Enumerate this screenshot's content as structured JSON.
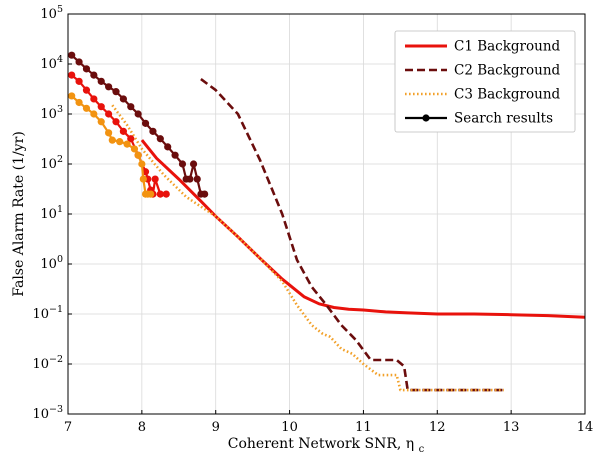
{
  "chart_data": {
    "type": "line",
    "title": "",
    "xlabel": "Coherent Network SNR, ηc",
    "ylabel": "False Alarm Rate (1/yr)",
    "xlim": [
      7,
      14
    ],
    "ylim": [
      0.001,
      100000
    ],
    "yscale": "log",
    "grid": true,
    "legend_position": "top-right",
    "x_ticks": [
      "7",
      "8",
      "9",
      "10",
      "11",
      "12",
      "13",
      "14"
    ],
    "y_ticks": [
      {
        "base": "10",
        "exp": "−3"
      },
      {
        "base": "10",
        "exp": "−2"
      },
      {
        "base": "10",
        "exp": "−1"
      },
      {
        "base": "10",
        "exp": "0"
      },
      {
        "base": "10",
        "exp": "1"
      },
      {
        "base": "10",
        "exp": "2"
      },
      {
        "base": "10",
        "exp": "3"
      },
      {
        "base": "10",
        "exp": "4"
      },
      {
        "base": "10",
        "exp": "5"
      }
    ],
    "legend": [
      {
        "label": "C1 Background",
        "color": "#e8120c",
        "style": "solid"
      },
      {
        "label": "C2 Background",
        "color": "#6b0d0d",
        "style": "dashed"
      },
      {
        "label": "C3 Background",
        "color": "#f2a12a",
        "style": "dotted"
      },
      {
        "label": "Search results",
        "color": "#000000",
        "style": "marker-line"
      }
    ],
    "series": [
      {
        "name": "C1 Background",
        "color": "#e8120c",
        "style": "solid",
        "x": [
          8.0,
          8.2,
          8.5,
          8.8,
          9.0,
          9.3,
          9.6,
          9.9,
          10.2,
          10.4,
          10.6,
          10.8,
          11.0,
          11.3,
          11.6,
          12.0,
          12.5,
          13.0,
          13.5,
          14.0
        ],
        "y": [
          300,
          130,
          50,
          18,
          9,
          3.5,
          1.3,
          0.5,
          0.22,
          0.16,
          0.135,
          0.125,
          0.12,
          0.11,
          0.105,
          0.1,
          0.1,
          0.097,
          0.093,
          0.086
        ]
      },
      {
        "name": "C2 Background",
        "color": "#6b0d0d",
        "style": "dashed",
        "x": [
          8.8,
          9.0,
          9.3,
          9.6,
          9.9,
          10.1,
          10.3,
          10.5,
          10.7,
          10.9,
          11.1,
          11.2,
          11.3,
          11.45,
          11.55,
          11.6,
          12.0,
          12.5,
          12.9
        ],
        "y": [
          5000,
          3000,
          1000,
          120,
          10,
          1.2,
          0.35,
          0.15,
          0.06,
          0.03,
          0.012,
          0.012,
          0.012,
          0.012,
          0.009,
          0.003,
          0.003,
          0.003,
          0.003
        ]
      },
      {
        "name": "C3 Background",
        "color": "#f2a12a",
        "style": "dotted",
        "x": [
          7.6,
          7.8,
          8.0,
          8.3,
          8.6,
          9.0,
          9.3,
          9.6,
          9.9,
          10.1,
          10.3,
          10.45,
          10.55,
          10.7,
          10.85,
          11.0,
          11.2,
          11.35,
          11.45,
          11.5,
          11.7,
          12.0,
          12.5,
          12.9
        ],
        "y": [
          1500,
          600,
          200,
          60,
          22,
          9,
          3.5,
          1.3,
          0.45,
          0.15,
          0.06,
          0.04,
          0.035,
          0.02,
          0.016,
          0.01,
          0.006,
          0.006,
          0.006,
          0.003,
          0.003,
          0.003,
          0.003,
          0.003
        ]
      },
      {
        "name": "Search results C1",
        "color": "#e8120c",
        "style": "marker-line",
        "x": [
          7.05,
          7.15,
          7.25,
          7.35,
          7.45,
          7.55,
          7.65,
          7.75,
          7.85,
          7.95,
          8.05,
          8.08,
          8.12,
          8.15,
          8.18,
          8.25,
          8.33
        ],
        "y": [
          6000,
          4500,
          3000,
          2000,
          1400,
          1000,
          700,
          450,
          320,
          150,
          70,
          50,
          30,
          25,
          50,
          25,
          25
        ]
      },
      {
        "name": "Search results C2",
        "color": "#6b0d0d",
        "style": "marker-line",
        "x": [
          7.05,
          7.15,
          7.25,
          7.35,
          7.45,
          7.55,
          7.65,
          7.75,
          7.85,
          7.95,
          8.05,
          8.15,
          8.25,
          8.35,
          8.45,
          8.55,
          8.6,
          8.65,
          8.7,
          8.75,
          8.8,
          8.85
        ],
        "y": [
          15000,
          11000,
          8000,
          6000,
          4500,
          3500,
          2800,
          2000,
          1400,
          1000,
          650,
          450,
          320,
          220,
          150,
          100,
          50,
          50,
          100,
          50,
          25,
          25
        ]
      },
      {
        "name": "Search results C3",
        "color": "#f29311",
        "style": "marker-line",
        "x": [
          7.05,
          7.15,
          7.25,
          7.35,
          7.45,
          7.55,
          7.6,
          7.7,
          7.8,
          7.9,
          7.95,
          8.0,
          8.02,
          8.05,
          8.08,
          8.12
        ],
        "y": [
          2300,
          1700,
          1300,
          1000,
          700,
          420,
          300,
          280,
          250,
          200,
          150,
          100,
          50,
          25,
          25,
          25
        ]
      }
    ]
  }
}
